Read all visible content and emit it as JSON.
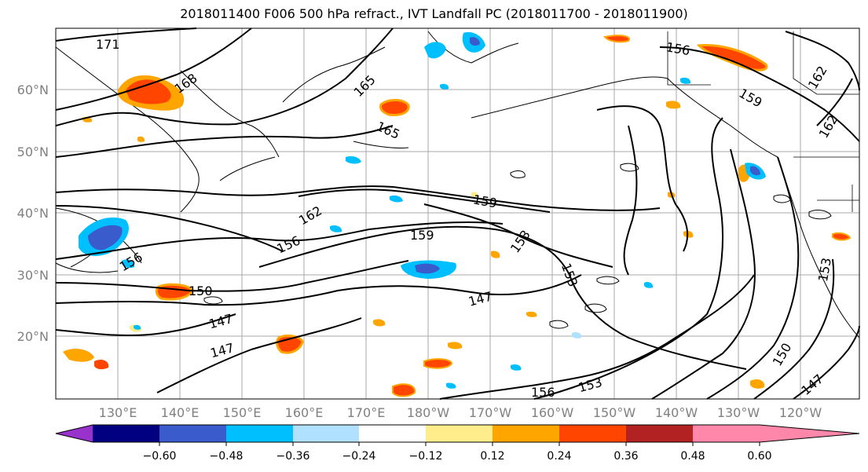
{
  "title": "2018011400 F006 500 hPa refract., IVT Landfall PC (2018011700 - 2018011900)",
  "map": {
    "lat_labels": [
      "60°N",
      "50°N",
      "40°N",
      "30°N",
      "20°N"
    ],
    "lon_labels": [
      "130°E",
      "140°E",
      "150°E",
      "160°E",
      "170°E",
      "180°W",
      "170°W",
      "160°W",
      "150°W",
      "140°W",
      "130°W",
      "120°W"
    ],
    "contour_labels": [
      "171",
      "168",
      "165",
      "165",
      "162",
      "159",
      "159",
      "156",
      "156",
      "153",
      "153",
      "150",
      "147",
      "147",
      "147",
      "162",
      "159",
      "156",
      "153",
      "150",
      "147",
      "156",
      "153",
      "162"
    ]
  },
  "colorbar": {
    "labels": [
      "−0.60",
      "−0.48",
      "−0.36",
      "−0.24",
      "−0.12",
      "0.12",
      "0.24",
      "0.36",
      "0.48",
      "0.60"
    ],
    "colors": [
      "#9932cc",
      "#000080",
      "#3a5bcc",
      "#00bfff",
      "#b0e2ff",
      "#ffffff",
      "#ffec8b",
      "#ffa500",
      "#ff4500",
      "#b22222",
      "#ff88aa"
    ]
  }
}
